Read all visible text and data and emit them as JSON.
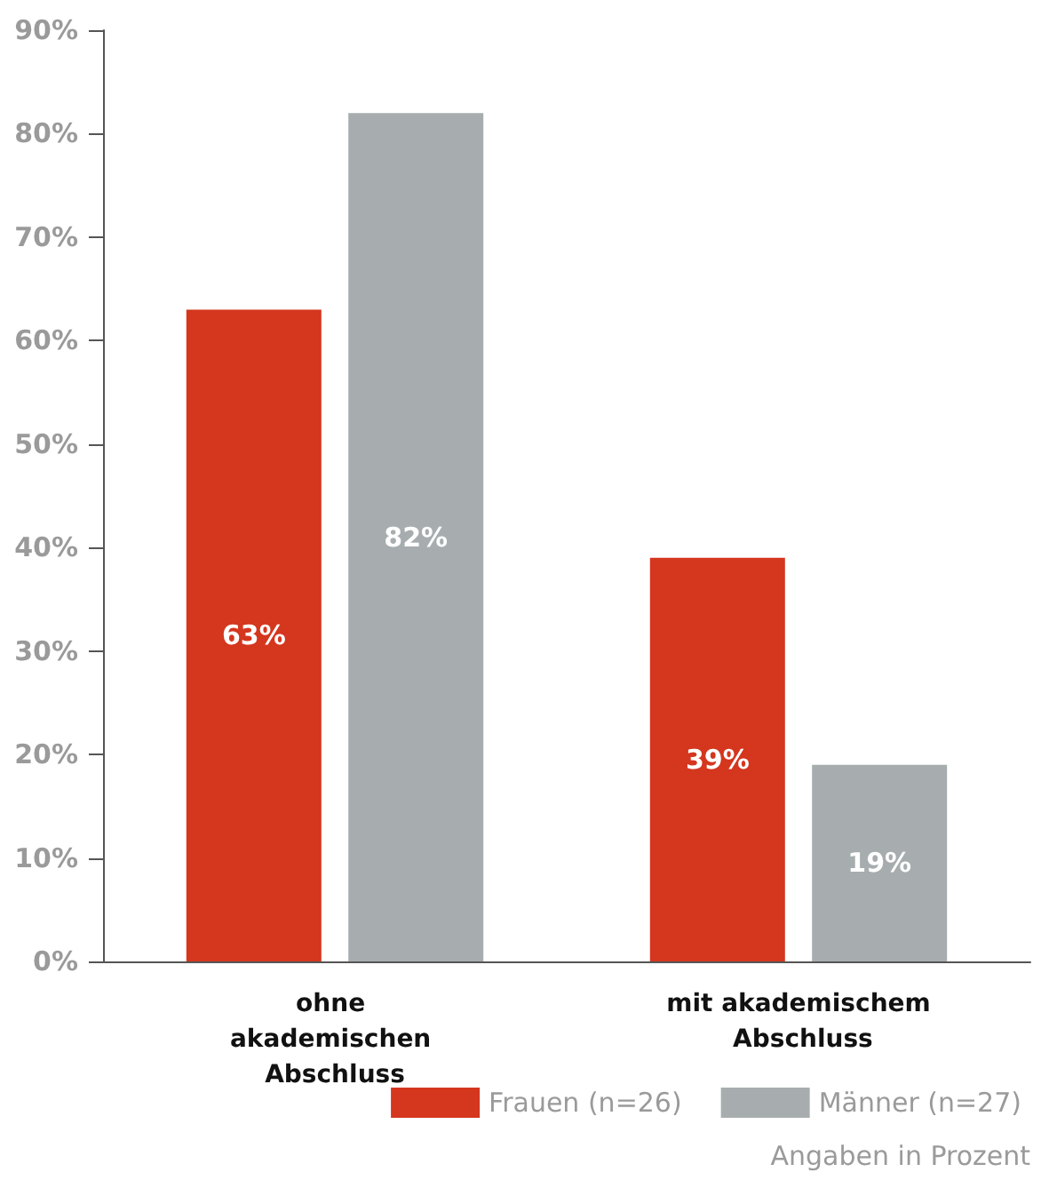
{
  "chart_data": {
    "type": "bar",
    "categories": [
      "ohne akademischen Abschluss",
      "mit akademischem Abschluss"
    ],
    "series": [
      {
        "name": "Frauen (n=26)",
        "color": "#d4361e",
        "values": [
          63,
          39
        ],
        "value_labels": [
          "63%",
          "39%"
        ]
      },
      {
        "name": "Männer (n=27)",
        "color": "#a7adaf",
        "values": [
          82,
          19
        ],
        "value_labels": [
          "82%",
          "19%"
        ]
      }
    ],
    "ylim": [
      0,
      90
    ],
    "yticks": [
      {
        "value": 0,
        "label": "0%"
      },
      {
        "value": 10,
        "label": "10%"
      },
      {
        "value": 20,
        "label": "20%"
      },
      {
        "value": 30,
        "label": "30%"
      },
      {
        "value": 40,
        "label": "40%"
      },
      {
        "value": 50,
        "label": "50%"
      },
      {
        "value": 60,
        "label": "60%"
      },
      {
        "value": 70,
        "label": "70%"
      },
      {
        "value": 80,
        "label": "80%"
      },
      {
        "value": 90,
        "label": "90%"
      }
    ],
    "grid": false,
    "legend": "bottom right",
    "annotations": [
      "Angaben in Prozent"
    ]
  }
}
